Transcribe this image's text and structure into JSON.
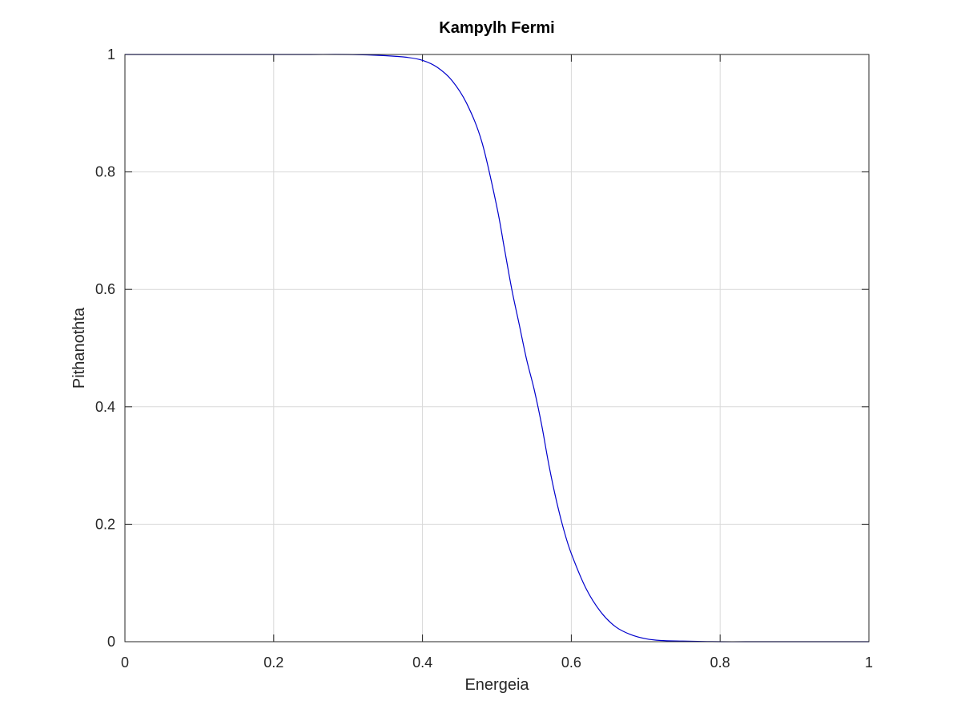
{
  "chart_data": {
    "type": "line",
    "title": "Kampylh Fermi",
    "xlabel": "Energeia",
    "ylabel": "Pithanothta",
    "xlim": [
      0,
      1
    ],
    "ylim": [
      0,
      1
    ],
    "x_ticks": [
      0,
      0.2,
      0.4,
      0.6,
      0.8,
      1
    ],
    "y_ticks": [
      0,
      0.2,
      0.4,
      0.6,
      0.8,
      1
    ],
    "x_tick_labels": [
      "0",
      "0.2",
      "0.4",
      "0.6",
      "0.8",
      "1"
    ],
    "y_tick_labels": [
      "0",
      "0.2",
      "0.4",
      "0.6",
      "0.8",
      "1"
    ],
    "grid": true,
    "series": [
      {
        "color": "#0000cc",
        "x": [
          0,
          0.05,
          0.1,
          0.15,
          0.2,
          0.25,
          0.3,
          0.35,
          0.38,
          0.4,
          0.42,
          0.44,
          0.46,
          0.48,
          0.5,
          0.51,
          0.52,
          0.53,
          0.54,
          0.55,
          0.56,
          0.57,
          0.58,
          0.59,
          0.6,
          0.62,
          0.64,
          0.66,
          0.68,
          0.7,
          0.72,
          0.75,
          0.8,
          0.85,
          0.9,
          0.95,
          1
        ],
        "y": [
          1,
          1,
          1,
          1,
          1,
          1,
          1,
          0.998,
          0.995,
          0.99,
          0.978,
          0.955,
          0.915,
          0.85,
          0.74,
          0.67,
          0.6,
          0.54,
          0.48,
          0.43,
          0.37,
          0.3,
          0.24,
          0.19,
          0.15,
          0.09,
          0.05,
          0.025,
          0.012,
          0.005,
          0.002,
          0.001,
          0,
          0,
          0,
          0,
          0
        ]
      }
    ]
  }
}
